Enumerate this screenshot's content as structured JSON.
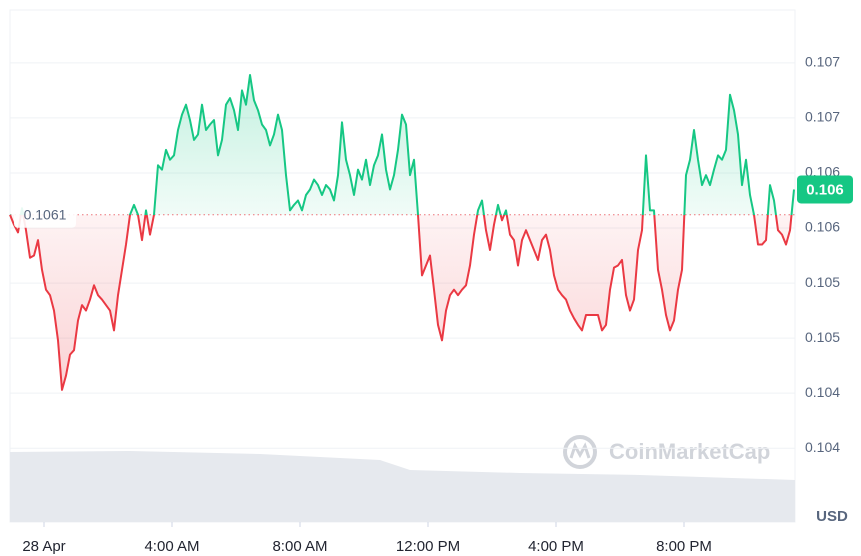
{
  "chart_data": {
    "type": "line",
    "currency_label": "USD",
    "watermark": "CoinMarketCap",
    "up_color": "#16c784",
    "down_color": "#ea3943",
    "grid": true,
    "reference": {
      "value": 0.1061,
      "label": "0.1061"
    },
    "current": {
      "value": 0.10633,
      "label": "0.106"
    },
    "xlim": [
      -1.0625,
      23.46875
    ],
    "ylim": [
      0.10331,
      0.10796
    ],
    "xticks": [
      {
        "value": 0,
        "label": "28 Apr"
      },
      {
        "value": 4,
        "label": "4:00 AM"
      },
      {
        "value": 8,
        "label": "8:00 AM"
      },
      {
        "value": 12,
        "label": "12:00 PM"
      },
      {
        "value": 16,
        "label": "4:00 PM"
      },
      {
        "value": 20,
        "label": "8:00 PM"
      }
    ],
    "yticks": [
      {
        "value": 0.10398,
        "label": "0.104"
      },
      {
        "value": 0.10448,
        "label": "0.104"
      },
      {
        "value": 0.10498,
        "label": "0.105"
      },
      {
        "value": 0.10548,
        "label": "0.105"
      },
      {
        "value": 0.10598,
        "label": "0.106"
      },
      {
        "value": 0.10648,
        "label": "0.106"
      },
      {
        "value": 0.10698,
        "label": "0.107"
      },
      {
        "value": 0.10748,
        "label": "0.107"
      }
    ],
    "x": [
      -1.0625,
      -0.9375,
      -0.8125,
      -0.6875,
      -0.5625,
      -0.4375,
      -0.3125,
      -0.1875,
      -0.0625,
      0.0625,
      0.1875,
      0.3125,
      0.4375,
      0.5625,
      0.6875,
      0.8125,
      0.9375,
      1.0625,
      1.1875,
      1.3125,
      1.4375,
      1.5625,
      1.6875,
      1.8125,
      1.9375,
      2.0625,
      2.1875,
      2.3125,
      2.4375,
      2.5625,
      2.6875,
      2.8125,
      2.9375,
      3.0625,
      3.1875,
      3.3125,
      3.4375,
      3.5625,
      3.6875,
      3.8125,
      3.9375,
      4.0625,
      4.1875,
      4.3125,
      4.4375,
      4.5625,
      4.6875,
      4.8125,
      4.9375,
      5.0625,
      5.1875,
      5.3125,
      5.4375,
      5.5625,
      5.6875,
      5.8125,
      5.9375,
      6.0625,
      6.1875,
      6.3125,
      6.4375,
      6.5625,
      6.6875,
      6.8125,
      6.9375,
      7.0625,
      7.1875,
      7.3125,
      7.4375,
      7.5625,
      7.6875,
      7.8125,
      7.9375,
      8.0625,
      8.1875,
      8.3125,
      8.4375,
      8.5625,
      8.6875,
      8.8125,
      8.9375,
      9.0625,
      9.1875,
      9.3125,
      9.4375,
      9.5625,
      9.6875,
      9.8125,
      9.9375,
      10.0625,
      10.1875,
      10.3125,
      10.4375,
      10.5625,
      10.6875,
      10.8125,
      10.9375,
      11.0625,
      11.1875,
      11.3125,
      11.4375,
      11.5625,
      11.6875,
      11.8125,
      11.9375,
      12.0625,
      12.1875,
      12.3125,
      12.4375,
      12.5625,
      12.6875,
      12.8125,
      12.9375,
      13.0625,
      13.1875,
      13.3125,
      13.4375,
      13.5625,
      13.6875,
      13.8125,
      13.9375,
      14.0625,
      14.1875,
      14.3125,
      14.4375,
      14.5625,
      14.6875,
      14.8125,
      14.9375,
      15.0625,
      15.1875,
      15.3125,
      15.4375,
      15.5625,
      15.6875,
      15.8125,
      15.9375,
      16.0625,
      16.1875,
      16.3125,
      16.4375,
      16.5625,
      16.6875,
      16.8125,
      16.9375,
      17.0625,
      17.1875,
      17.3125,
      17.4375,
      17.5625,
      17.6875,
      17.8125,
      17.9375,
      18.0625,
      18.1875,
      18.3125,
      18.4375,
      18.5625,
      18.6875,
      18.8125,
      18.9375,
      19.0625,
      19.1875,
      19.3125,
      19.4375,
      19.5625,
      19.6875,
      19.8125,
      19.9375,
      20.0625,
      20.1875,
      20.3125,
      20.4375,
      20.5625,
      20.6875,
      20.8125,
      20.9375,
      21.0625,
      21.1875,
      21.3125,
      21.4375,
      21.5625,
      21.6875,
      21.8125,
      21.9375,
      22.0625,
      22.1875,
      22.3125,
      22.4375,
      22.5625,
      22.6875,
      22.8125,
      22.9375,
      23.0625,
      23.1875,
      23.3125,
      23.4375
    ],
    "values": [
      0.1061,
      0.10601,
      0.10594,
      0.10616,
      0.10596,
      0.10571,
      0.10573,
      0.10587,
      0.1056,
      0.10542,
      0.10537,
      0.10523,
      0.10496,
      0.10451,
      0.10464,
      0.10483,
      0.10487,
      0.10514,
      0.10528,
      0.10523,
      0.10533,
      0.10546,
      0.10537,
      0.10533,
      0.10528,
      0.10523,
      0.10505,
      0.10537,
      0.1056,
      0.10583,
      0.1061,
      0.10619,
      0.1061,
      0.10587,
      0.10614,
      0.10592,
      0.1061,
      0.10655,
      0.10651,
      0.10669,
      0.1066,
      0.10664,
      0.10687,
      0.10701,
      0.1071,
      0.10696,
      0.10678,
      0.10683,
      0.1071,
      0.10687,
      0.10692,
      0.10696,
      0.10664,
      0.10678,
      0.1071,
      0.10716,
      0.10705,
      0.10687,
      0.10723,
      0.1071,
      0.10737,
      0.10714,
      0.10705,
      0.10692,
      0.10687,
      0.10673,
      0.10683,
      0.10701,
      0.10687,
      0.10646,
      0.10614,
      0.10619,
      0.10623,
      0.10614,
      0.10628,
      0.10633,
      0.10642,
      0.10637,
      0.10628,
      0.10637,
      0.10633,
      0.10623,
      0.10646,
      0.10694,
      0.1066,
      0.10646,
      0.10628,
      0.10651,
      0.10642,
      0.1066,
      0.10637,
      0.10655,
      0.10664,
      0.10683,
      0.10651,
      0.10633,
      0.10646,
      0.10669,
      0.10701,
      0.10692,
      0.10646,
      0.1066,
      0.1061,
      0.10555,
      0.10564,
      0.10573,
      0.10542,
      0.1051,
      0.10496,
      0.10523,
      0.10537,
      0.10542,
      0.10537,
      0.10542,
      0.10546,
      0.10564,
      0.10592,
      0.10614,
      0.10623,
      0.10596,
      0.10578,
      0.10601,
      0.10619,
      0.10605,
      0.10614,
      0.10592,
      0.10587,
      0.10564,
      0.10587,
      0.10596,
      0.10587,
      0.10578,
      0.10569,
      0.10587,
      0.10592,
      0.10578,
      0.10555,
      0.10542,
      0.10537,
      0.10533,
      0.10523,
      0.10516,
      0.1051,
      0.10505,
      0.10519,
      0.10519,
      0.10519,
      0.10519,
      0.10505,
      0.1051,
      0.10542,
      0.10562,
      0.10564,
      0.10569,
      0.10537,
      0.10523,
      0.10533,
      0.10578,
      0.10596,
      0.10664,
      0.10614,
      0.10614,
      0.1056,
      0.10542,
      0.10519,
      0.10505,
      0.10514,
      0.10542,
      0.1056,
      0.10646,
      0.1066,
      0.10687,
      0.1066,
      0.10637,
      0.10646,
      0.10637,
      0.10651,
      0.10664,
      0.1066,
      0.10669,
      0.10719,
      0.10705,
      0.10683,
      0.10637,
      0.1066,
      0.10628,
      0.1061,
      0.10583,
      0.10583,
      0.10587,
      0.10637,
      0.10623,
      0.10596,
      0.10592,
      0.10583,
      0.10596,
      0.10633
    ]
  }
}
